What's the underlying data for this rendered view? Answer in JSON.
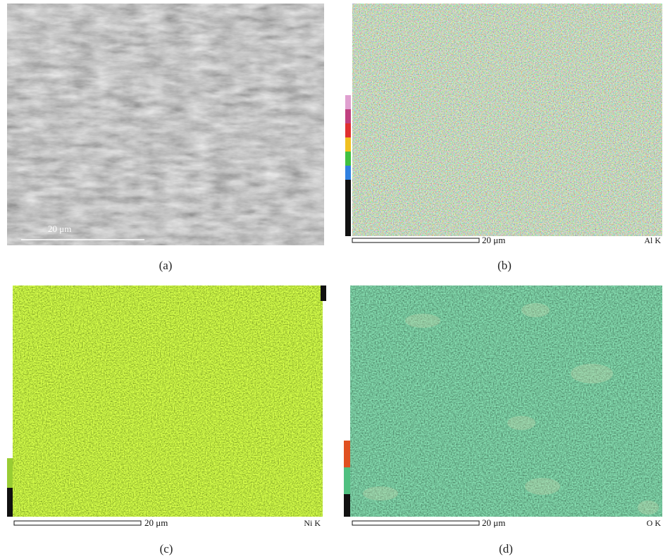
{
  "panels": [
    {
      "label": "(a)",
      "scale_bar": "20 μm"
    },
    {
      "label": "(b)",
      "scale_bar": "20 μm",
      "element": "Al K"
    },
    {
      "label": "(c)",
      "scale_bar": "20 μm",
      "element": "Ni K"
    },
    {
      "label": "(d)",
      "scale_bar": "20 μm",
      "element": "O K"
    }
  ]
}
